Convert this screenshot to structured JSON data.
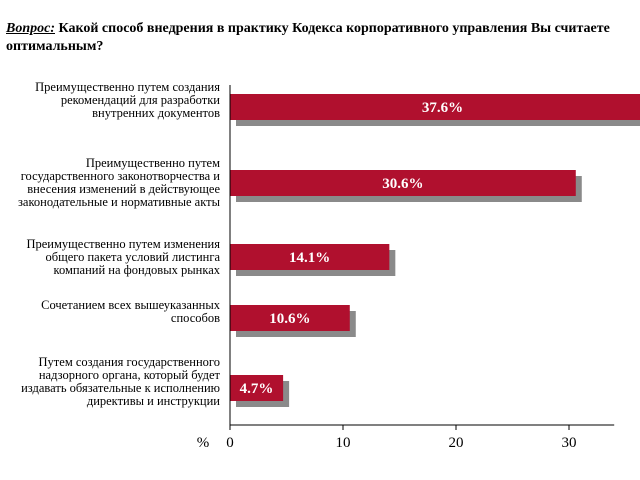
{
  "question": {
    "prefix": "Вопрос:",
    "text": "Какой способ внедрения в практику Кодекса корпоративного управления Вы считаете оптимальным?"
  },
  "chart_data": {
    "type": "bar",
    "orientation": "horizontal",
    "title": "Какой способ внедрения в практику Кодекса корпоративного управления Вы считаете оптимальным?",
    "xlabel": "%",
    "xlim": [
      0,
      34
    ],
    "xticks": [
      0,
      10,
      20,
      30
    ],
    "categories": [
      "Преимущественно путем создания рекомендаций для разработки внутренних документов",
      "Преимущественно путем государственного законотворчества и внесения изменений в действующее законодательные и нормативные акты",
      "Преимущественно путем изменения общего пакета условий листинга компаний на фондовых рынках",
      "Сочетанием всех вышеуказанных способов",
      "Путем создания государственного надзорного органа, который будет издавать обязательные к исполнению директивы и инструкции"
    ],
    "values": [
      37.6,
      30.6,
      14.1,
      10.6,
      4.7
    ],
    "value_labels": [
      "37.6%",
      "30.6%",
      "14.1%",
      "10.6%",
      "4.7%"
    ],
    "colors": {
      "bar": "#b0102e",
      "shadow": "#8a8a8a",
      "label_text": "#ffffff"
    }
  }
}
